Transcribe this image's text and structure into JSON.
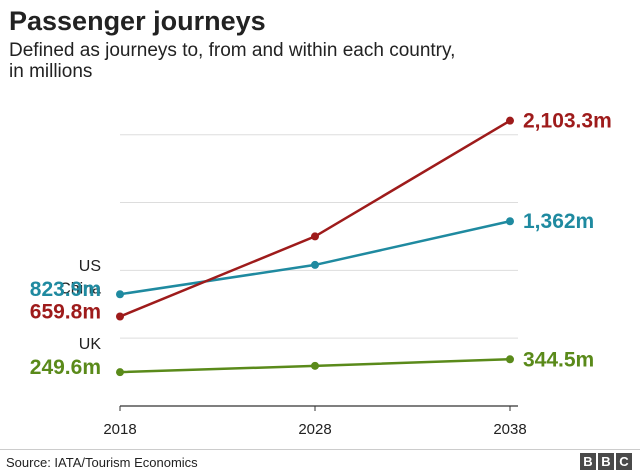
{
  "title": "Passenger journeys",
  "subtitle_line1": "Defined as journeys to, from and within each country,",
  "subtitle_line2": "in millions",
  "source": "Source: IATA/Tourism Economics",
  "logo": [
    "B",
    "B",
    "C"
  ],
  "colors": {
    "china": "#9e1b1b",
    "us": "#1f8aa0",
    "uk": "#5a8a1a",
    "grid": "#dddddd",
    "axis": "#333333"
  },
  "chart_data": {
    "type": "line",
    "title": "Passenger journeys",
    "xlabel": "",
    "ylabel": "",
    "x": [
      2018,
      2028,
      2038
    ],
    "x_tick_labels": [
      "2018",
      "2028",
      "2038"
    ],
    "ylim": [
      0,
      2300
    ],
    "grid": true,
    "series": [
      {
        "key": "china",
        "name": "China",
        "values": [
          659.8,
          1250,
          2103.3
        ],
        "start_label": "659.8m",
        "end_label": "2,103.3m"
      },
      {
        "key": "us",
        "name": "US",
        "values": [
          823.9,
          1040,
          1362
        ],
        "start_label": "823.9m",
        "end_label": "1,362m"
      },
      {
        "key": "uk",
        "name": "UK",
        "values": [
          249.6,
          296,
          344.5
        ],
        "start_label": "249.6m",
        "end_label": "344.5m"
      }
    ]
  }
}
